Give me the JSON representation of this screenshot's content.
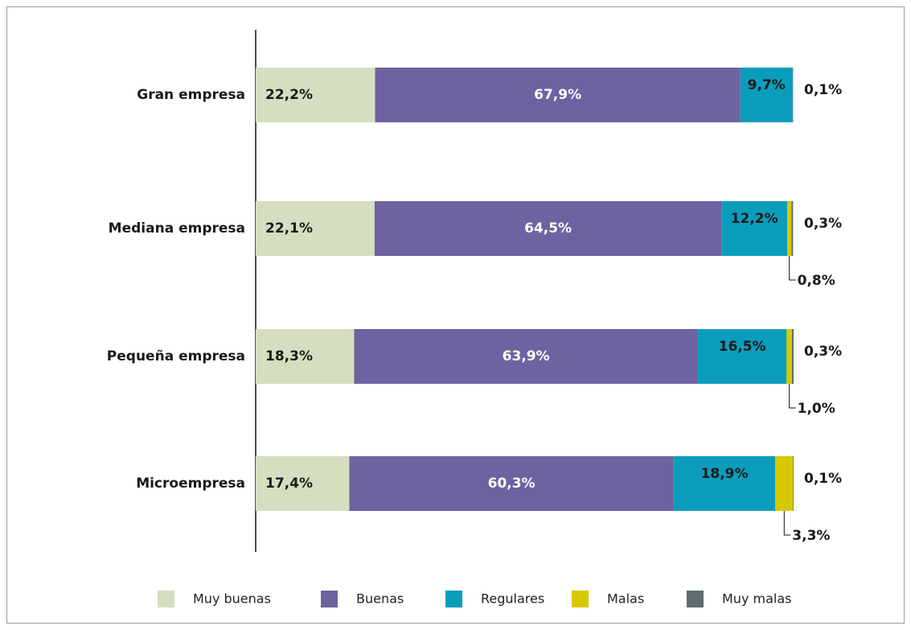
{
  "chart_data": {
    "type": "stacked-barh",
    "categories": [
      "Gran empresa",
      "Mediana empresa",
      "Pequeña empresa",
      "Microempresa"
    ],
    "xlim": [
      0,
      100
    ],
    "series": [
      {
        "name": "Muy buenas",
        "color": "#d4dfc0",
        "values": [
          22.2,
          22.1,
          18.3,
          17.4
        ],
        "value_labels": [
          "22,2%",
          "22,1%",
          "18,3%",
          "17,4%"
        ]
      },
      {
        "name": "Buenas",
        "color": "#6e62a0",
        "values": [
          67.9,
          64.5,
          63.9,
          60.3
        ],
        "value_labels": [
          "67,9%",
          "64,5%",
          "63,9%",
          "60,3%"
        ]
      },
      {
        "name": "Regulares",
        "color": "#0a9dbb",
        "values": [
          9.7,
          12.2,
          16.5,
          18.9
        ],
        "value_labels": [
          "9,7%",
          "12,2%",
          "16,5%",
          "18,9%"
        ]
      },
      {
        "name": "Malas",
        "color": "#d8c800",
        "values": [
          0,
          0.8,
          1.0,
          3.3
        ],
        "value_labels": [
          null,
          "0,8%",
          "1,0%",
          "3,3%"
        ]
      },
      {
        "name": "Muy malas",
        "color": "#5f6b70",
        "values": [
          0.1,
          0.3,
          0.3,
          0.1
        ],
        "value_labels": [
          "0,1%",
          "0,3%",
          "0,3%",
          "0,1%"
        ]
      }
    ],
    "legend": "bottom"
  }
}
